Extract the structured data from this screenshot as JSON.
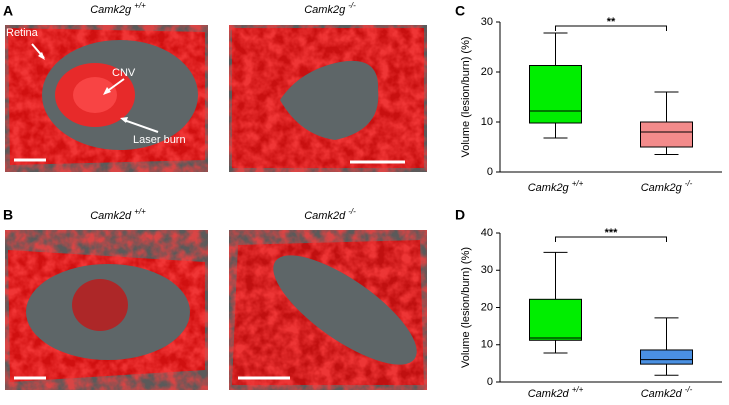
{
  "panel_labels": [
    "A",
    "B",
    "C",
    "D"
  ],
  "images": [
    {
      "gene": "Camk2g",
      "genotype": "+/+",
      "annotations": [
        "Retina",
        "CNV",
        "Laser burn"
      ]
    },
    {
      "gene": "Camk2g",
      "genotype": "-/-"
    },
    {
      "gene": "Camk2d",
      "genotype": "+/+"
    },
    {
      "gene": "Camk2d",
      "genotype": "-/-"
    }
  ],
  "chart_data": [
    {
      "type": "box",
      "ylabel": "Volume (lesion/burn) (%)",
      "categories": [
        "Camk2g",
        "Camk2g"
      ],
      "category_superscripts": [
        "+/+",
        "-/-"
      ],
      "boxes": [
        {
          "min": 6.8,
          "q1": 9.8,
          "median": 12.2,
          "q3": 21.3,
          "max": 27.8,
          "color": "#00ee00"
        },
        {
          "min": 3.5,
          "q1": 5.0,
          "median": 8.0,
          "q3": 10.0,
          "max": 16.0,
          "color": "#f38b8b"
        }
      ],
      "significance": "**",
      "ylim": [
        0,
        30
      ],
      "yticks": [
        0,
        10,
        20,
        30
      ]
    },
    {
      "type": "box",
      "ylabel": "Volume (lesion/burn) (%)",
      "categories": [
        "Camk2d",
        "Camk2d"
      ],
      "category_superscripts": [
        "+/+",
        "-/-"
      ],
      "boxes": [
        {
          "min": 7.8,
          "q1": 11.2,
          "median": 11.8,
          "q3": 22.2,
          "max": 34.8,
          "color": "#00ee00"
        },
        {
          "min": 1.8,
          "q1": 4.8,
          "median": 6.0,
          "q3": 8.6,
          "max": 17.2,
          "color": "#4a90e2"
        }
      ],
      "significance": "***",
      "ylim": [
        0,
        40
      ],
      "yticks": [
        0,
        10,
        20,
        30,
        40
      ]
    }
  ]
}
